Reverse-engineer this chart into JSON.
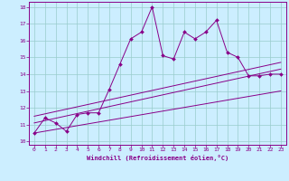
{
  "title": "",
  "xlabel": "Windchill (Refroidissement éolien,°C)",
  "ylabel": "",
  "bg_color": "#cceeff",
  "line_color": "#880088",
  "grid_color": "#99cccc",
  "xlim": [
    -0.5,
    23.5
  ],
  "ylim": [
    9.8,
    18.3
  ],
  "x_ticks": [
    0,
    1,
    2,
    3,
    4,
    5,
    6,
    7,
    8,
    9,
    10,
    11,
    12,
    13,
    14,
    15,
    16,
    17,
    18,
    19,
    20,
    21,
    22,
    23
  ],
  "y_ticks": [
    10,
    11,
    12,
    13,
    14,
    15,
    16,
    17,
    18
  ],
  "line1_x": [
    0,
    1,
    2,
    3,
    4,
    5,
    6,
    7,
    8,
    9,
    10,
    11,
    12,
    13,
    14,
    15,
    16,
    17,
    18,
    19,
    20,
    21,
    22,
    23
  ],
  "line1_y": [
    10.5,
    11.4,
    11.1,
    10.6,
    11.6,
    11.7,
    11.7,
    13.1,
    14.6,
    16.1,
    16.5,
    18.0,
    15.1,
    14.9,
    16.5,
    16.1,
    16.5,
    17.2,
    15.3,
    15.0,
    13.9,
    13.9,
    14.0,
    14.0
  ],
  "line2_x": [
    0,
    23
  ],
  "line2_y": [
    10.5,
    13.0
  ],
  "line3_x": [
    0,
    23
  ],
  "line3_y": [
    11.1,
    14.3
  ],
  "line4_x": [
    0,
    23
  ],
  "line4_y": [
    11.5,
    14.7
  ]
}
